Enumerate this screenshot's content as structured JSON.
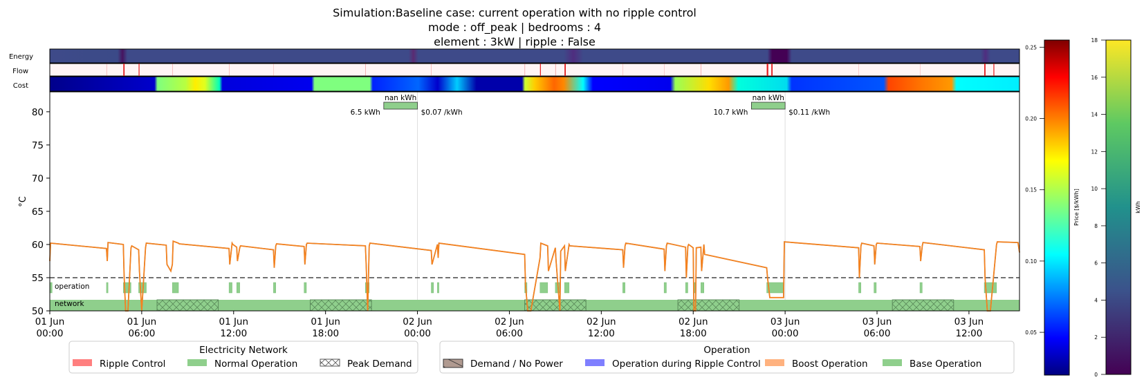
{
  "title": {
    "line1": "Simulation:Baseline case: current operation with no ripple control",
    "line2": "mode : off_peak | bedrooms : 4",
    "line3": "element : 3kW | ripple : False"
  },
  "colors": {
    "temp_line": "#f5821f",
    "temp_line_under": "#1f77b4",
    "setpoint_line": "#444444",
    "normal_operation": "#8fcf8c",
    "ripple_control": "#ff7f7f",
    "boost_operation": "#ffb27f",
    "ripple_operation": "#7f7fff",
    "demand_no_power": "#b09a90"
  },
  "heat_strips": {
    "energy_label": "Energy",
    "flow_label": "Flow",
    "cost_label": "Cost"
  },
  "colorbars": {
    "price": {
      "label": "Price [$/kWh]",
      "colormap": "jet",
      "ticks": [
        "0.05",
        "0.10",
        "0.15",
        "0.20",
        "0.25"
      ],
      "range": [
        0.02,
        0.255
      ]
    },
    "energy": {
      "label": "kWh",
      "colormap": "viridis",
      "ticks": [
        "0",
        "2",
        "4",
        "6",
        "8",
        "10",
        "12",
        "14",
        "16",
        "18"
      ],
      "range": [
        0,
        18
      ]
    }
  },
  "chart_data": {
    "type": "line",
    "ylabel": "°C",
    "ylim": [
      50,
      83
    ],
    "yticks": [
      "50",
      "55",
      "60",
      "65",
      "70",
      "75",
      "80"
    ],
    "xlim_hours": [
      0,
      63.3
    ],
    "xticks": [
      {
        "line1": "01 Jun",
        "line2": "00:00"
      },
      {
        "line1": "01 Jun",
        "line2": "06:00"
      },
      {
        "line1": "01 Jun",
        "line2": "12:00"
      },
      {
        "line1": "01 Jun",
        "line2": "18:00"
      },
      {
        "line1": "02 Jun",
        "line2": "00:00"
      },
      {
        "line1": "02 Jun",
        "line2": "06:00"
      },
      {
        "line1": "02 Jun",
        "line2": "12:00"
      },
      {
        "line1": "02 Jun",
        "line2": "18:00"
      },
      {
        "line1": "03 Jun",
        "line2": "00:00"
      },
      {
        "line1": "03 Jun",
        "line2": "06:00"
      },
      {
        "line1": "03 Jun",
        "line2": "12:00"
      }
    ],
    "setpoint": 55,
    "row_labels": {
      "operation": "operation",
      "network": "network"
    },
    "day_boxes": [
      {
        "x_start": 21.8,
        "x_end": 24.0,
        "top": "nan kWh",
        "left": "6.5 kWh",
        "right": "$0.07 /kWh"
      },
      {
        "x_start": 45.8,
        "x_end": 48.0,
        "top": "nan kWh",
        "left": "10.7 kWh",
        "right": "$0.11 /kWh"
      }
    ],
    "peak_demand_periods": [
      [
        7,
        11
      ],
      [
        17,
        21
      ],
      [
        31,
        35
      ],
      [
        41,
        45
      ],
      [
        55,
        59
      ]
    ],
    "base_operation_bars": [
      [
        0,
        0.15
      ],
      [
        3.7,
        3.8
      ],
      [
        4.8,
        5.3
      ],
      [
        5.8,
        6.3
      ],
      [
        8.0,
        8.4
      ],
      [
        11.7,
        11.9
      ],
      [
        12.2,
        12.4
      ],
      [
        14.6,
        14.75
      ],
      [
        16.6,
        16.75
      ],
      [
        20.6,
        20.85
      ],
      [
        24.9,
        25.05
      ],
      [
        25.3,
        25.4
      ],
      [
        31.0,
        31.15
      ],
      [
        32.0,
        32.5
      ],
      [
        33.0,
        33.3
      ],
      [
        33.6,
        33.9
      ],
      [
        37.4,
        37.55
      ],
      [
        40.1,
        40.25
      ],
      [
        41.5,
        41.65
      ],
      [
        42.0,
        42.15
      ],
      [
        42.5,
        42.7
      ],
      [
        46.8,
        47.9
      ],
      [
        52.8,
        52.95
      ],
      [
        53.8,
        53.95
      ],
      [
        56.8,
        56.95
      ],
      [
        61.0,
        61.8
      ]
    ],
    "temperature_series": {
      "name": "",
      "x": [
        0,
        0.05,
        3.7,
        3.75,
        3.8,
        4.8,
        4.85,
        4.95,
        5.1,
        5.3,
        5.35,
        5.8,
        5.85,
        6.0,
        6.25,
        6.3,
        7.6,
        7.65,
        7.9,
        8.0,
        8.05,
        8.4,
        8.45,
        11.7,
        11.75,
        11.9,
        11.95,
        12.2,
        12.25,
        12.4,
        12.45,
        14.6,
        14.65,
        14.75,
        14.8,
        16.6,
        16.65,
        16.75,
        16.8,
        20.6,
        20.65,
        20.75,
        20.85,
        20.9,
        24.9,
        24.95,
        25.3,
        25.35,
        25.4,
        31.0,
        31.05,
        31.2,
        31.4,
        32.0,
        32.05,
        32.5,
        32.55,
        33.0,
        33.05,
        33.3,
        33.35,
        33.6,
        33.65,
        33.9,
        33.95,
        37.4,
        37.45,
        37.55,
        37.6,
        40.1,
        40.15,
        40.25,
        40.3,
        41.5,
        41.55,
        41.65,
        41.7,
        42.0,
        42.05,
        42.15,
        42.2,
        42.5,
        42.55,
        42.7,
        42.75,
        46.8,
        46.85,
        47.0,
        47.9,
        47.95,
        52.8,
        52.85,
        52.95,
        53.0,
        53.8,
        53.85,
        53.95,
        54.0,
        56.8,
        56.85,
        56.95,
        57.0,
        61.0,
        61.05,
        61.2,
        61.4,
        61.8,
        61.85,
        63.2,
        63.3
      ],
      "y": [
        57.5,
        60.2,
        59.4,
        57.5,
        60.3,
        60.0,
        55.5,
        50.0,
        50.0,
        59.5,
        59.8,
        59.2,
        56.0,
        50.0,
        59.5,
        60.2,
        59.9,
        57.0,
        56.0,
        57.0,
        60.5,
        60.2,
        60.1,
        59.4,
        57.0,
        60.2,
        60.0,
        59.6,
        57.5,
        59.5,
        59.8,
        59.2,
        56.5,
        59.8,
        60.1,
        59.7,
        57.0,
        60.0,
        60.2,
        59.8,
        57.0,
        50.0,
        59.8,
        60.2,
        59.1,
        57.0,
        60.0,
        58.0,
        60.2,
        58.5,
        54.0,
        50.0,
        50.0,
        58.0,
        60.2,
        59.8,
        56.0,
        59.5,
        57.5,
        50.0,
        59.0,
        59.8,
        56.0,
        60.0,
        59.8,
        59.2,
        56.5,
        59.8,
        60.2,
        59.3,
        56.0,
        59.8,
        60.2,
        59.6,
        55.0,
        59.7,
        60.0,
        59.5,
        50.0,
        50.0,
        59.5,
        59.6,
        56.0,
        60.0,
        58.5,
        56.5,
        55.0,
        52.0,
        52.0,
        60.4,
        59.5,
        55.0,
        59.8,
        60.2,
        59.8,
        57.0,
        60.0,
        60.2,
        59.7,
        57.5,
        59.8,
        60.3,
        59.2,
        55.0,
        50.0,
        50.0,
        60.0,
        60.4,
        60.3,
        58.8
      ]
    }
  },
  "legend_network": {
    "title": "Electricity Network",
    "items": [
      "Ripple Control",
      "Normal Operation",
      "Peak Demand"
    ]
  },
  "legend_operation": {
    "title": "Operation",
    "items": [
      "Demand / No Power",
      "Operation during Ripple Control",
      "Boost Operation",
      "Base Operation"
    ]
  }
}
